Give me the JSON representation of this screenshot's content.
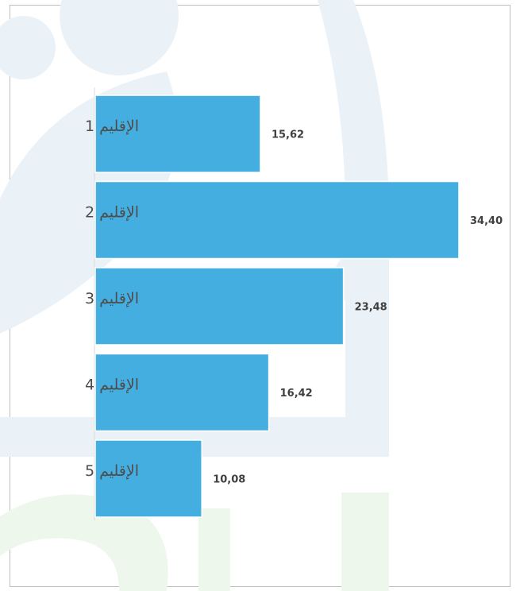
{
  "chart_data": {
    "type": "bar",
    "orientation": "horizontal",
    "categories": [
      "الإقليم 1",
      "الإقليم 2",
      "الإقليم 3",
      "الإقليم 4",
      "الإقليم 5"
    ],
    "values": [
      15.62,
      34.4,
      23.48,
      16.42,
      10.08
    ],
    "value_labels": [
      "15,62",
      "34,40",
      "23,48",
      "16,42",
      "10,08"
    ],
    "title": "",
    "xlabel": "",
    "ylabel": "",
    "xlim": [
      0,
      34.4
    ],
    "grid": false,
    "legend": "none",
    "colors": {
      "bar": "#45aee0",
      "bar_edge": "#ffffff",
      "axis": "#d9d9d9",
      "label_text": "#4d4d4d",
      "watermark_blue": "#eaf2f8",
      "watermark_green": "#eef7ec"
    }
  }
}
